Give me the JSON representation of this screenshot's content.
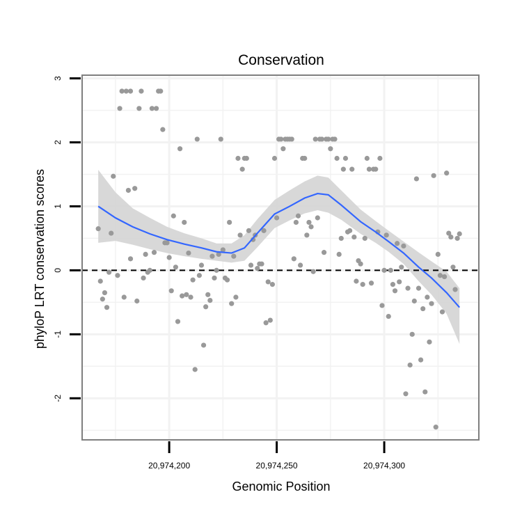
{
  "chart_data": {
    "type": "scatter",
    "title": "Conservation",
    "xlabel": "Genomic Position",
    "ylabel": "phyloP LRT conservation scores",
    "xlim": [
      20974159.5,
      20974344
    ],
    "ylim": [
      -2.65,
      3.05
    ],
    "x_ticks": [
      20974200,
      20974250,
      20974300
    ],
    "x_tick_labels": [
      "20,974,200",
      "20,974,250",
      "20,974,300"
    ],
    "y_ticks": [
      3,
      2,
      1,
      0,
      -1,
      -2
    ],
    "y_tick_labels": [
      "3",
      "2",
      "1",
      "0",
      "-1",
      "-2"
    ],
    "reference_line": {
      "y": 0,
      "style": "dashed",
      "color": "#000000"
    },
    "colors": {
      "points": "#999999",
      "smooth": "#3366ff",
      "ribbon": "#d4d4d4",
      "grid": "#f2f2f2",
      "frame": "#7f7f7f"
    },
    "points": [
      [
        20974167,
        0.65
      ],
      [
        20974168,
        -0.17
      ],
      [
        20974169,
        -0.45
      ],
      [
        20974170,
        -0.35
      ],
      [
        20974171,
        -0.58
      ],
      [
        20974172,
        -0.03
      ],
      [
        20974173,
        0.58
      ],
      [
        20974174,
        1.47
      ],
      [
        20974176,
        -0.08
      ],
      [
        20974177,
        2.53
      ],
      [
        20974178,
        2.8
      ],
      [
        20974179,
        -0.42
      ],
      [
        20974180,
        2.8
      ],
      [
        20974181,
        1.25
      ],
      [
        20974182,
        2.8
      ],
      [
        20974182,
        0.18
      ],
      [
        20974184,
        1.28
      ],
      [
        20974185,
        -0.48
      ],
      [
        20974186,
        2.53
      ],
      [
        20974187,
        2.8
      ],
      [
        20974188,
        -0.12
      ],
      [
        20974189,
        0.25
      ],
      [
        20974190,
        -0.03
      ],
      [
        20974191,
        0.0
      ],
      [
        20974192,
        2.53
      ],
      [
        20974193,
        0.28
      ],
      [
        20974194,
        2.53
      ],
      [
        20974195,
        2.8
      ],
      [
        20974196,
        2.8
      ],
      [
        20974197,
        2.2
      ],
      [
        20974198,
        0.43
      ],
      [
        20974199,
        0.43
      ],
      [
        20974200,
        0.2
      ],
      [
        20974201,
        -0.32
      ],
      [
        20974202,
        0.85
      ],
      [
        20974203,
        0.05
      ],
      [
        20974204,
        -0.8
      ],
      [
        20974205,
        1.9
      ],
      [
        20974206,
        -0.4
      ],
      [
        20974207,
        0.75
      ],
      [
        20974208,
        -0.38
      ],
      [
        20974209,
        0.27
      ],
      [
        20974210,
        -0.42
      ],
      [
        20974211,
        -0.15
      ],
      [
        20974212,
        -1.55
      ],
      [
        20974213,
        2.05
      ],
      [
        20974214,
        -0.08
      ],
      [
        20974215,
        0.08
      ],
      [
        20974216,
        -1.17
      ],
      [
        20974217,
        -0.57
      ],
      [
        20974218,
        -0.38
      ],
      [
        20974219,
        -0.47
      ],
      [
        20974220,
        0.22
      ],
      [
        20974221,
        -0.12
      ],
      [
        20974222,
        0.0
      ],
      [
        20974223,
        0.25
      ],
      [
        20974224,
        2.05
      ],
      [
        20974225,
        0.32
      ],
      [
        20974226,
        -0.12
      ],
      [
        20974227,
        -0.15
      ],
      [
        20974228,
        0.75
      ],
      [
        20974229,
        -0.52
      ],
      [
        20974230,
        0.22
      ],
      [
        20974231,
        -0.42
      ],
      [
        20974232,
        1.75
      ],
      [
        20974233,
        0.55
      ],
      [
        20974234,
        1.58
      ],
      [
        20974235,
        1.75
      ],
      [
        20974236,
        1.75
      ],
      [
        20974237,
        0.62
      ],
      [
        20974238,
        0.08
      ],
      [
        20974239,
        0.48
      ],
      [
        20974240,
        0.55
      ],
      [
        20974241,
        0.03
      ],
      [
        20974242,
        0.1
      ],
      [
        20974243,
        0.1
      ],
      [
        20974244,
        0.62
      ],
      [
        20974245,
        -0.82
      ],
      [
        20974246,
        -0.18
      ],
      [
        20974247,
        -0.78
      ],
      [
        20974248,
        -0.22
      ],
      [
        20974249,
        1.75
      ],
      [
        20974250,
        0.82
      ],
      [
        20974251,
        2.05
      ],
      [
        20974252,
        2.05
      ],
      [
        20974253,
        1.9
      ],
      [
        20974254,
        2.05
      ],
      [
        20974255,
        2.05
      ],
      [
        20974256,
        2.05
      ],
      [
        20974257,
        2.05
      ],
      [
        20974258,
        0.18
      ],
      [
        20974259,
        0.75
      ],
      [
        20974260,
        0.85
      ],
      [
        20974261,
        0.08
      ],
      [
        20974262,
        1.75
      ],
      [
        20974263,
        1.75
      ],
      [
        20974264,
        0.55
      ],
      [
        20974265,
        0.75
      ],
      [
        20974266,
        0.68
      ],
      [
        20974267,
        -0.02
      ],
      [
        20974268,
        2.05
      ],
      [
        20974269,
        0.82
      ],
      [
        20974270,
        2.05
      ],
      [
        20974271,
        2.05
      ],
      [
        20974272,
        0.28
      ],
      [
        20974273,
        2.05
      ],
      [
        20974274,
        2.05
      ],
      [
        20974275,
        1.9
      ],
      [
        20974276,
        2.05
      ],
      [
        20974277,
        2.05
      ],
      [
        20974278,
        1.75
      ],
      [
        20974279,
        0.25
      ],
      [
        20974280,
        0.5
      ],
      [
        20974281,
        1.58
      ],
      [
        20974282,
        1.75
      ],
      [
        20974283,
        0.6
      ],
      [
        20974284,
        0.62
      ],
      [
        20974285,
        1.58
      ],
      [
        20974286,
        0.52
      ],
      [
        20974287,
        -0.17
      ],
      [
        20974288,
        0.15
      ],
      [
        20974289,
        0.1
      ],
      [
        20974290,
        -0.22
      ],
      [
        20974291,
        0.5
      ],
      [
        20974292,
        1.75
      ],
      [
        20974293,
        1.58
      ],
      [
        20974294,
        -0.2
      ],
      [
        20974295,
        1.58
      ],
      [
        20974296,
        1.58
      ],
      [
        20974297,
        0.6
      ],
      [
        20974298,
        1.75
      ],
      [
        20974299,
        -0.55
      ],
      [
        20974300,
        0.0
      ],
      [
        20974301,
        0.55
      ],
      [
        20974302,
        -0.72
      ],
      [
        20974303,
        0.0
      ],
      [
        20974304,
        -0.22
      ],
      [
        20974305,
        -0.32
      ],
      [
        20974306,
        0.42
      ],
      [
        20974307,
        -0.18
      ],
      [
        20974308,
        0.05
      ],
      [
        20974309,
        0.38
      ],
      [
        20974310,
        -1.93
      ],
      [
        20974311,
        -0.28
      ],
      [
        20974312,
        -1.48
      ],
      [
        20974313,
        -1.0
      ],
      [
        20974314,
        -0.48
      ],
      [
        20974315,
        1.43
      ],
      [
        20974316,
        -0.28
      ],
      [
        20974317,
        -1.4
      ],
      [
        20974318,
        -0.6
      ],
      [
        20974319,
        -1.9
      ],
      [
        20974320,
        -0.42
      ],
      [
        20974321,
        -1.12
      ],
      [
        20974322,
        -0.52
      ],
      [
        20974323,
        1.48
      ],
      [
        20974324,
        -2.45
      ],
      [
        20974325,
        0.25
      ],
      [
        20974326,
        -0.08
      ],
      [
        20974327,
        -0.65
      ],
      [
        20974328,
        -0.1
      ],
      [
        20974329,
        1.52
      ],
      [
        20974330,
        0.58
      ],
      [
        20974331,
        0.52
      ],
      [
        20974332,
        0.05
      ],
      [
        20974333,
        -0.3
      ],
      [
        20974334,
        0.5
      ],
      [
        20974335,
        0.57
      ]
    ],
    "smooth": [
      [
        20974167,
        1.0
      ],
      [
        20974175,
        0.82
      ],
      [
        20974183,
        0.68
      ],
      [
        20974191,
        0.57
      ],
      [
        20974199,
        0.48
      ],
      [
        20974207,
        0.41
      ],
      [
        20974215,
        0.35
      ],
      [
        20974222,
        0.29
      ],
      [
        20974229,
        0.27
      ],
      [
        20974235,
        0.35
      ],
      [
        20974241,
        0.58
      ],
      [
        20974249,
        0.88
      ],
      [
        20974256,
        1.0
      ],
      [
        20974263,
        1.13
      ],
      [
        20974269,
        1.2
      ],
      [
        20974274,
        1.18
      ],
      [
        20974280,
        1.02
      ],
      [
        20974289,
        0.76
      ],
      [
        20974296,
        0.6
      ],
      [
        20974302,
        0.45
      ],
      [
        20974309,
        0.27
      ],
      [
        20974316,
        0.05
      ],
      [
        20974322,
        -0.12
      ],
      [
        20974329,
        -0.35
      ],
      [
        20974335,
        -0.58
      ]
    ],
    "ribbon_upper": [
      [
        20974167,
        1.57
      ],
      [
        20974175,
        1.22
      ],
      [
        20974183,
        0.97
      ],
      [
        20974191,
        0.82
      ],
      [
        20974199,
        0.68
      ],
      [
        20974207,
        0.58
      ],
      [
        20974215,
        0.5
      ],
      [
        20974222,
        0.42
      ],
      [
        20974229,
        0.42
      ],
      [
        20974235,
        0.55
      ],
      [
        20974241,
        0.8
      ],
      [
        20974249,
        1.1
      ],
      [
        20974256,
        1.25
      ],
      [
        20974263,
        1.39
      ],
      [
        20974269,
        1.48
      ],
      [
        20974274,
        1.45
      ],
      [
        20974280,
        1.25
      ],
      [
        20974289,
        0.95
      ],
      [
        20974296,
        0.77
      ],
      [
        20974302,
        0.62
      ],
      [
        20974309,
        0.45
      ],
      [
        20974316,
        0.28
      ],
      [
        20974322,
        0.14
      ],
      [
        20974329,
        -0.02
      ],
      [
        20974335,
        -0.28
      ]
    ],
    "ribbon_lower": [
      [
        20974167,
        0.43
      ],
      [
        20974175,
        0.46
      ],
      [
        20974183,
        0.4
      ],
      [
        20974191,
        0.33
      ],
      [
        20974199,
        0.27
      ],
      [
        20974207,
        0.22
      ],
      [
        20974215,
        0.18
      ],
      [
        20974222,
        0.15
      ],
      [
        20974229,
        0.12
      ],
      [
        20974235,
        0.15
      ],
      [
        20974241,
        0.36
      ],
      [
        20974249,
        0.66
      ],
      [
        20974256,
        0.78
      ],
      [
        20974263,
        0.89
      ],
      [
        20974269,
        0.94
      ],
      [
        20974274,
        0.9
      ],
      [
        20974280,
        0.79
      ],
      [
        20974289,
        0.57
      ],
      [
        20974296,
        0.43
      ],
      [
        20974302,
        0.29
      ],
      [
        20974309,
        0.1
      ],
      [
        20974316,
        -0.17
      ],
      [
        20974322,
        -0.38
      ],
      [
        20974329,
        -0.68
      ],
      [
        20974335,
        -1.15
      ]
    ]
  }
}
